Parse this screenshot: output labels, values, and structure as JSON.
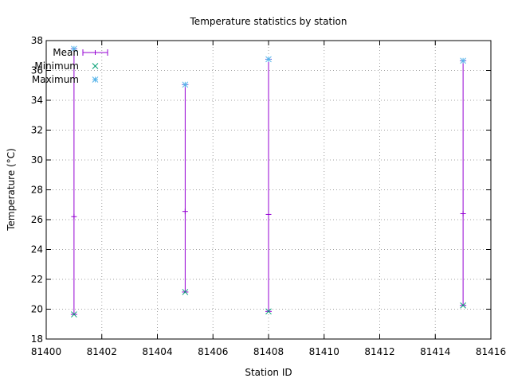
{
  "chart_data": {
    "type": "scatter",
    "title": "Temperature statistics by station",
    "xlabel": "Station ID",
    "ylabel": "Temperature (°C)",
    "xlim": [
      81400,
      81416
    ],
    "ylim": [
      18,
      38
    ],
    "xticks": [
      81400,
      81402,
      81404,
      81406,
      81408,
      81410,
      81412,
      81414,
      81416
    ],
    "yticks": [
      18,
      20,
      22,
      24,
      26,
      28,
      30,
      32,
      34,
      36,
      38
    ],
    "grid": true,
    "legend_position": "top-left",
    "series": [
      {
        "name": "Mean",
        "kind": "errorbar",
        "color": "#9400d3",
        "x": [
          81401,
          81405,
          81408,
          81415
        ],
        "mean": [
          26.2,
          26.55,
          26.35,
          26.4
        ],
        "low": [
          19.65,
          21.15,
          19.85,
          20.25
        ],
        "high": [
          37.45,
          35.05,
          36.75,
          36.65
        ]
      },
      {
        "name": "Minimum",
        "kind": "points",
        "marker": "x",
        "color": "#009e73",
        "x": [
          81401,
          81405,
          81408,
          81415
        ],
        "values": [
          19.65,
          21.15,
          19.85,
          20.25
        ]
      },
      {
        "name": "Maximum",
        "kind": "points",
        "marker": "star",
        "color": "#56b4e9",
        "x": [
          81401,
          81405,
          81408,
          81415
        ],
        "values": [
          37.45,
          35.05,
          36.75,
          36.65
        ]
      }
    ]
  }
}
